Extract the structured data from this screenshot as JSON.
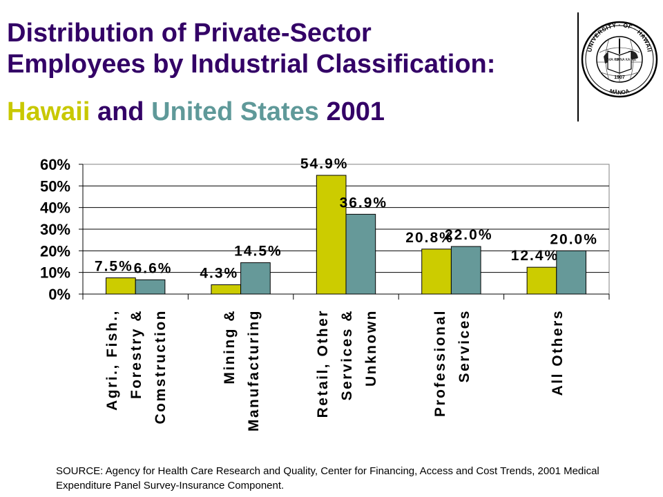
{
  "title": {
    "line1": "Distribution of Private-Sector",
    "line2": "Employees by Industrial Classification:",
    "hawaii": "Hawaii",
    "and": "and",
    "us": "United States",
    "year": "2001"
  },
  "seal": {
    "top_text": "UNIVERSITY · OF · HAWAII",
    "bottom_text": "MĀNOA",
    "year": "1907",
    "book_left": "MA KA",
    "book_right": "HANA KA IKE"
  },
  "source": "SOURCE: Agency for Health Care Research and Quality, Center for Financing, Access and Cost Trends, 2001 Medical Expenditure Panel Survey-Insurance Component.",
  "colors": {
    "hawaii": "#cccc00",
    "us": "#669999",
    "title": "#330066"
  },
  "chart_data": {
    "type": "bar",
    "categories": [
      [
        "Agri., Fish.,",
        "Forestry &",
        "Comstruction"
      ],
      [
        "Mining &",
        "Manufacturing"
      ],
      [
        "Retail, Other",
        "Services &",
        "Unknown"
      ],
      [
        "Professional",
        "Services"
      ],
      [
        "All Others"
      ]
    ],
    "series": [
      {
        "name": "Hawaii",
        "values": [
          7.5,
          4.3,
          54.9,
          20.8,
          12.4
        ],
        "labels": [
          "7.5%",
          "4.3%",
          "54.9%",
          "20.8%",
          "12.4%"
        ]
      },
      {
        "name": "United States",
        "values": [
          6.6,
          14.5,
          36.9,
          22.0,
          20.0
        ],
        "labels": [
          "6.6%",
          "14.5%",
          "36.9%",
          "22.0%",
          "20.0%"
        ]
      }
    ],
    "yticks": [
      "0%",
      "10%",
      "20%",
      "30%",
      "40%",
      "50%",
      "60%"
    ],
    "ylim": [
      0,
      60
    ],
    "grid": true,
    "legend": "none"
  }
}
